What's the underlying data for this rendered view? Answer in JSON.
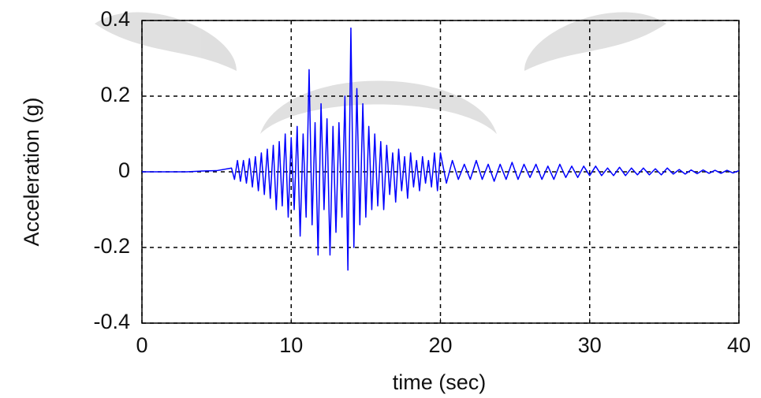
{
  "chart_data": {
    "type": "line",
    "x_label": "time (sec)",
    "y_label": "Acceleration (g)",
    "xlim": [
      0,
      40
    ],
    "ylim": [
      -0.4,
      0.4
    ],
    "xticks": [
      0,
      10,
      20,
      30,
      40
    ],
    "yticks": [
      -0.4,
      -0.2,
      0,
      0.2,
      0.4
    ],
    "grid": true,
    "x": [
      0,
      1,
      2,
      3,
      4,
      5,
      6.0,
      6.2,
      6.4,
      6.6,
      6.8,
      7.0,
      7.2,
      7.4,
      7.6,
      7.8,
      8.0,
      8.2,
      8.4,
      8.6,
      8.8,
      9.0,
      9.2,
      9.4,
      9.6,
      9.8,
      10.0,
      10.2,
      10.4,
      10.6,
      10.8,
      11.0,
      11.2,
      11.4,
      11.6,
      11.8,
      12.0,
      12.2,
      12.4,
      12.6,
      12.8,
      13.0,
      13.2,
      13.4,
      13.6,
      13.8,
      14.0,
      14.2,
      14.4,
      14.6,
      14.8,
      15.0,
      15.2,
      15.4,
      15.6,
      15.8,
      16.0,
      16.2,
      16.4,
      16.6,
      16.8,
      17.0,
      17.2,
      17.4,
      17.6,
      17.8,
      18.0,
      18.2,
      18.4,
      18.6,
      18.8,
      19.0,
      19.2,
      19.4,
      19.6,
      19.8,
      20.0,
      20.4,
      20.8,
      21.2,
      21.6,
      22.0,
      22.4,
      22.8,
      23.2,
      23.6,
      24.0,
      24.4,
      24.8,
      25.2,
      25.6,
      26.0,
      26.4,
      26.8,
      27.2,
      27.6,
      28.0,
      28.4,
      28.8,
      29.2,
      29.6,
      30.0,
      30.4,
      30.8,
      31.2,
      31.6,
      32.0,
      32.4,
      32.8,
      33.2,
      33.6,
      34.0,
      34.4,
      34.8,
      35.2,
      35.6,
      36.0,
      36.4,
      36.8,
      37.2,
      37.6,
      38.0,
      38.4,
      38.8,
      39.2,
      39.6,
      40.0
    ],
    "series": [
      {
        "color": "#0000ff",
        "values": [
          0,
          0,
          0,
          0,
          0.002,
          0.003,
          0.01,
          -0.02,
          0.03,
          -0.025,
          0.03,
          -0.03,
          0.035,
          -0.04,
          0.04,
          -0.05,
          0.05,
          -0.06,
          0.06,
          -0.07,
          0.07,
          -0.1,
          0.08,
          -0.09,
          0.1,
          -0.12,
          0.09,
          -0.1,
          0.12,
          -0.17,
          0.1,
          -0.12,
          0.27,
          -0.14,
          0.13,
          -0.22,
          0.18,
          -0.1,
          0.14,
          -0.22,
          0.12,
          -0.16,
          0.13,
          -0.12,
          0.2,
          -0.26,
          0.38,
          -0.2,
          0.22,
          -0.14,
          0.18,
          -0.12,
          0.12,
          -0.1,
          0.1,
          -0.09,
          0.08,
          -0.1,
          0.07,
          -0.06,
          0.05,
          -0.08,
          0.06,
          -0.05,
          0.04,
          -0.07,
          0.05,
          -0.04,
          0.03,
          -0.05,
          0.04,
          -0.03,
          0.03,
          -0.04,
          0.05,
          -0.05,
          0.05,
          -0.03,
          0.03,
          -0.02,
          0.02,
          -0.02,
          0.03,
          -0.02,
          0.02,
          -0.025,
          0.02,
          -0.02,
          0.025,
          -0.02,
          0.02,
          -0.015,
          0.02,
          -0.02,
          0.015,
          -0.02,
          0.02,
          -0.015,
          0.015,
          -0.015,
          0.015,
          -0.01,
          0.015,
          -0.01,
          0.01,
          -0.01,
          0.012,
          -0.01,
          0.01,
          -0.008,
          0.01,
          -0.008,
          0.008,
          -0.008,
          0.01,
          -0.006,
          0.006,
          -0.006,
          0.005,
          -0.005,
          0.005,
          -0.004,
          0.004,
          -0.004,
          0.004,
          -0.003,
          0.003
        ]
      }
    ]
  }
}
